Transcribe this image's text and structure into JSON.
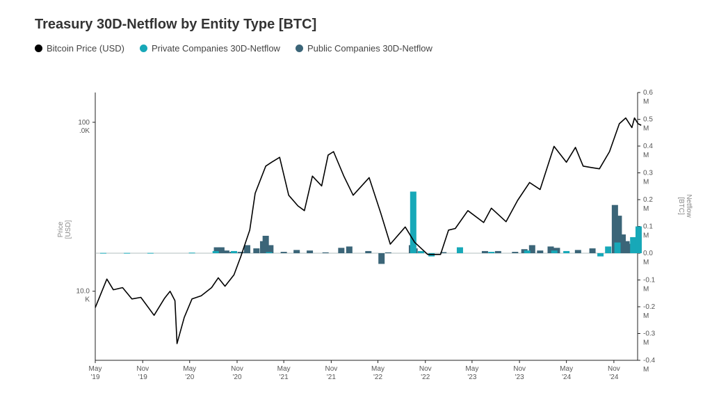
{
  "chart_data": {
    "type": "bar",
    "title": "Treasury 30D-Netflow by Entity Type [BTC]",
    "legend": [
      {
        "label": "Bitcoin Price (USD)",
        "color": "#000000",
        "kind": "line"
      },
      {
        "label": "Private Companies 30D-Netflow",
        "color": "#17a8b8",
        "kind": "bar"
      },
      {
        "label": "Public Companies 30D-Netflow",
        "color": "#3b6578",
        "kind": "bar"
      }
    ],
    "legend_position": "top-left",
    "grid": false,
    "x_ticks": [
      {
        "label": [
          "May",
          "'19"
        ],
        "date": "2019-05"
      },
      {
        "label": [
          "Nov",
          "'19"
        ],
        "date": "2019-11"
      },
      {
        "label": [
          "May",
          "'20"
        ],
        "date": "2020-05"
      },
      {
        "label": [
          "Nov",
          "'20"
        ],
        "date": "2020-11"
      },
      {
        "label": [
          "May",
          "'21"
        ],
        "date": "2021-05"
      },
      {
        "label": [
          "Nov",
          "'21"
        ],
        "date": "2021-11"
      },
      {
        "label": [
          "May",
          "'22"
        ],
        "date": "2022-05"
      },
      {
        "label": [
          "Nov",
          "'22"
        ],
        "date": "2022-11"
      },
      {
        "label": [
          "May",
          "'23"
        ],
        "date": "2023-05"
      },
      {
        "label": [
          "Nov",
          "'23"
        ],
        "date": "2023-11"
      },
      {
        "label": [
          "May",
          "'24"
        ],
        "date": "2024-05"
      },
      {
        "label": [
          "Nov",
          "'24"
        ],
        "date": "2024-11"
      }
    ],
    "xlim": [
      "2019-05",
      "2025-02"
    ],
    "y_left": {
      "label": [
        "Price",
        "[USD]"
      ],
      "scale": "log",
      "ticks": [
        {
          "value": 100000,
          "label": [
            "100",
            ".0K"
          ]
        },
        {
          "value": 10000,
          "label": [
            "10.0",
            "K"
          ]
        }
      ],
      "range": [
        3900,
        150000
      ]
    },
    "y_right": {
      "label": [
        "Netflow",
        "[BTC]"
      ],
      "range": [
        -400000,
        600000
      ],
      "ticks": [
        {
          "value": 600000,
          "label": [
            "0.6",
            "M"
          ]
        },
        {
          "value": 500000,
          "label": [
            "0.5",
            "M"
          ]
        },
        {
          "value": 400000,
          "label": [
            "0.4",
            "M"
          ]
        },
        {
          "value": 300000,
          "label": [
            "0.3",
            "M"
          ]
        },
        {
          "value": 200000,
          "label": [
            "0.2",
            "M"
          ]
        },
        {
          "value": 100000,
          "label": [
            "0.1",
            "M"
          ]
        },
        {
          "value": 0,
          "label": [
            "0.0",
            "M"
          ]
        },
        {
          "value": -100000,
          "label": [
            "-0.1",
            "M"
          ]
        },
        {
          "value": -200000,
          "label": [
            "-0.2",
            "M"
          ]
        },
        {
          "value": -300000,
          "label": [
            "-0.3",
            "M"
          ]
        },
        {
          "value": -400000,
          "label": [
            "-0.4",
            "M"
          ]
        }
      ]
    },
    "price_series": {
      "name": "Bitcoin Price (USD)",
      "points": [
        [
          "2019-05-01",
          8000
        ],
        [
          "2019-06-15",
          11800
        ],
        [
          "2019-07-10",
          10200
        ],
        [
          "2019-08-15",
          10500
        ],
        [
          "2019-09-20",
          9000
        ],
        [
          "2019-10-25",
          9200
        ],
        [
          "2019-12-15",
          7200
        ],
        [
          "2020-01-25",
          9100
        ],
        [
          "2020-02-15",
          10000
        ],
        [
          "2020-03-05",
          8800
        ],
        [
          "2020-03-13",
          4900
        ],
        [
          "2020-04-10",
          7000
        ],
        [
          "2020-05-10",
          9000
        ],
        [
          "2020-06-15",
          9400
        ],
        [
          "2020-07-25",
          10500
        ],
        [
          "2020-08-20",
          12000
        ],
        [
          "2020-09-15",
          10700
        ],
        [
          "2020-10-20",
          12500
        ],
        [
          "2020-11-15",
          16000
        ],
        [
          "2020-12-20",
          23000
        ],
        [
          "2021-01-10",
          38000
        ],
        [
          "2021-02-20",
          55000
        ],
        [
          "2021-03-15",
          58000
        ],
        [
          "2021-04-15",
          62000
        ],
        [
          "2021-05-20",
          37000
        ],
        [
          "2021-06-25",
          32000
        ],
        [
          "2021-07-20",
          30000
        ],
        [
          "2021-08-20",
          48000
        ],
        [
          "2021-09-25",
          42000
        ],
        [
          "2021-10-20",
          64000
        ],
        [
          "2021-11-10",
          67000
        ],
        [
          "2021-12-20",
          48000
        ],
        [
          "2022-01-25",
          37000
        ],
        [
          "2022-03-28",
          47000
        ],
        [
          "2022-05-12",
          29000
        ],
        [
          "2022-06-18",
          19000
        ],
        [
          "2022-08-15",
          24000
        ],
        [
          "2022-09-20",
          19500
        ],
        [
          "2022-11-10",
          16500
        ],
        [
          "2022-12-30",
          16500
        ],
        [
          "2023-01-30",
          23000
        ],
        [
          "2023-02-25",
          23500
        ],
        [
          "2023-04-15",
          30000
        ],
        [
          "2023-06-15",
          25500
        ],
        [
          "2023-07-15",
          31000
        ],
        [
          "2023-09-10",
          25800
        ],
        [
          "2023-10-25",
          34500
        ],
        [
          "2023-12-10",
          44000
        ],
        [
          "2024-01-20",
          40000
        ],
        [
          "2024-03-14",
          72000
        ],
        [
          "2024-05-01",
          58000
        ],
        [
          "2024-06-05",
          71000
        ],
        [
          "2024-07-05",
          55000
        ],
        [
          "2024-08-05",
          54000
        ],
        [
          "2024-09-06",
          53000
        ],
        [
          "2024-10-15",
          67000
        ],
        [
          "2024-11-22",
          98000
        ],
        [
          "2024-12-17",
          106000
        ],
        [
          "2025-01-10",
          93000
        ],
        [
          "2025-01-20",
          106000
        ],
        [
          "2025-02-03",
          98000
        ],
        [
          "2025-02-15",
          96000
        ]
      ]
    },
    "series": [
      {
        "name": "Public Companies 30D-Netflow",
        "bars": [
          [
            "2020-08-15",
            22000
          ],
          [
            "2020-09-01",
            22000
          ],
          [
            "2020-09-20",
            10000
          ],
          [
            "2020-10-15",
            5000
          ],
          [
            "2020-11-15",
            5000
          ],
          [
            "2020-12-10",
            30000
          ],
          [
            "2021-01-15",
            18000
          ],
          [
            "2021-02-10",
            45000
          ],
          [
            "2021-02-20",
            65000
          ],
          [
            "2021-03-10",
            30000
          ],
          [
            "2021-05-01",
            5000
          ],
          [
            "2021-06-20",
            12000
          ],
          [
            "2021-08-10",
            10000
          ],
          [
            "2021-10-10",
            3000
          ],
          [
            "2021-12-10",
            20000
          ],
          [
            "2022-01-10",
            25000
          ],
          [
            "2022-03-25",
            8000
          ],
          [
            "2022-05-15",
            -40000
          ],
          [
            "2022-06-10",
            3000
          ],
          [
            "2022-09-10",
            30000
          ],
          [
            "2022-09-20",
            18000
          ],
          [
            "2023-01-10",
            4000
          ],
          [
            "2023-06-20",
            8000
          ],
          [
            "2023-08-10",
            8000
          ],
          [
            "2023-10-15",
            5000
          ],
          [
            "2023-11-20",
            15000
          ],
          [
            "2023-12-20",
            30000
          ],
          [
            "2024-01-20",
            10000
          ],
          [
            "2024-03-01",
            25000
          ],
          [
            "2024-03-25",
            20000
          ],
          [
            "2024-06-15",
            12000
          ],
          [
            "2024-08-10",
            18000
          ],
          [
            "2024-11-05",
            180000
          ],
          [
            "2024-11-20",
            140000
          ],
          [
            "2024-12-05",
            70000
          ],
          [
            "2024-12-20",
            45000
          ],
          [
            "2025-01-05",
            35000
          ],
          [
            "2025-01-20",
            45000
          ],
          [
            "2025-02-05",
            60000
          ]
        ]
      },
      {
        "name": "Private Companies 30D-Netflow",
        "bars": [
          [
            "2019-06-01",
            1000
          ],
          [
            "2019-09-01",
            1000
          ],
          [
            "2019-12-01",
            1000
          ],
          [
            "2020-05-10",
            2000
          ],
          [
            "2020-08-10",
            8000
          ],
          [
            "2020-10-20",
            8000
          ],
          [
            "2021-03-05",
            4000
          ],
          [
            "2022-09-15",
            230000
          ],
          [
            "2022-10-15",
            8000
          ],
          [
            "2022-11-25",
            -12000
          ],
          [
            "2023-03-15",
            22000
          ],
          [
            "2023-07-15",
            5000
          ],
          [
            "2023-12-01",
            10000
          ],
          [
            "2024-03-15",
            10000
          ],
          [
            "2024-05-01",
            8000
          ],
          [
            "2024-09-10",
            -12000
          ],
          [
            "2024-10-10",
            25000
          ],
          [
            "2024-11-15",
            40000
          ],
          [
            "2025-01-15",
            60000
          ],
          [
            "2025-02-05",
            100000
          ]
        ]
      }
    ]
  }
}
